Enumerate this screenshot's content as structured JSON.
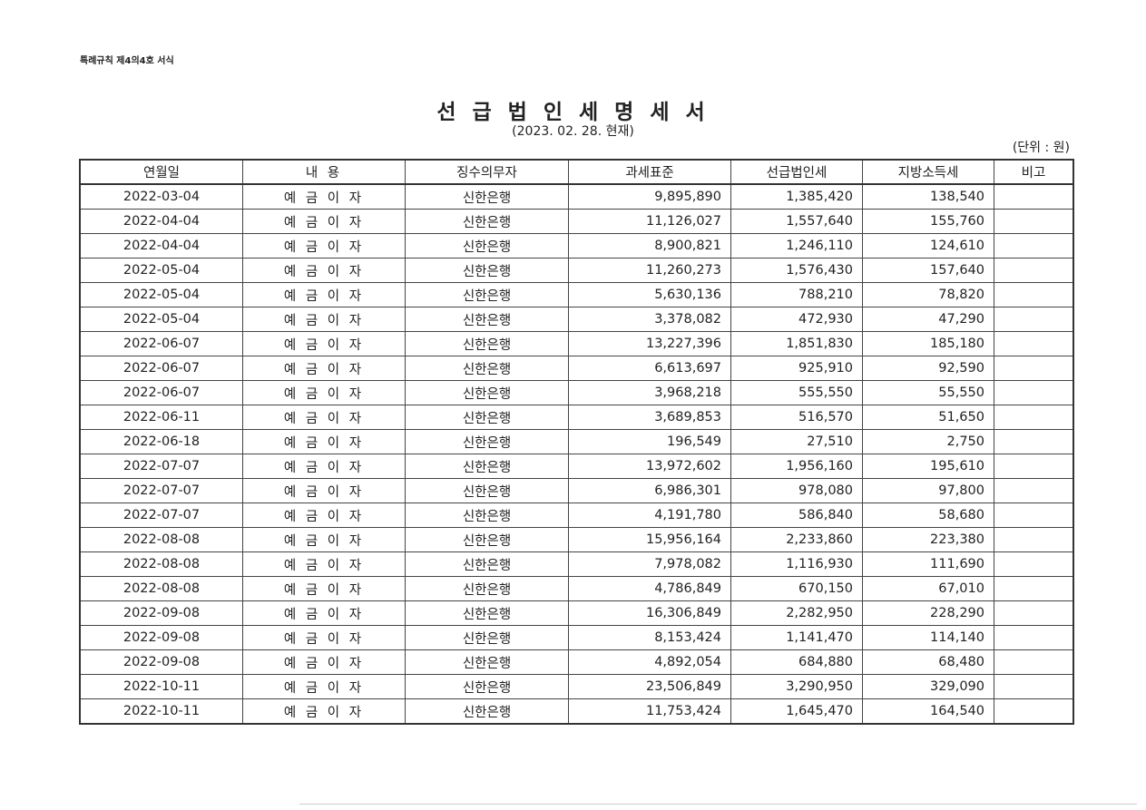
{
  "document": {
    "form_label": "특례규칙 제4의4호 서식",
    "title": "선 급 법 인 세 명 세 서",
    "subtitle": "(2023.  02.  28. 현재)",
    "unit": "(단위 : 원)"
  },
  "table": {
    "headers": [
      "연월일",
      "내        용",
      "징수의무자",
      "과세표준",
      "선급법인세",
      "지방소득세",
      "비고"
    ],
    "rows": [
      [
        "2022-03-04",
        "예 금 이 자",
        "신한은행",
        "9,895,890",
        "1,385,420",
        "138,540",
        ""
      ],
      [
        "2022-04-04",
        "예 금 이 자",
        "신한은행",
        "11,126,027",
        "1,557,640",
        "155,760",
        ""
      ],
      [
        "2022-04-04",
        "예 금 이 자",
        "신한은행",
        "8,900,821",
        "1,246,110",
        "124,610",
        ""
      ],
      [
        "2022-05-04",
        "예 금 이 자",
        "신한은행",
        "11,260,273",
        "1,576,430",
        "157,640",
        ""
      ],
      [
        "2022-05-04",
        "예 금 이 자",
        "신한은행",
        "5,630,136",
        "788,210",
        "78,820",
        ""
      ],
      [
        "2022-05-04",
        "예 금 이 자",
        "신한은행",
        "3,378,082",
        "472,930",
        "47,290",
        ""
      ],
      [
        "2022-06-07",
        "예 금 이 자",
        "신한은행",
        "13,227,396",
        "1,851,830",
        "185,180",
        ""
      ],
      [
        "2022-06-07",
        "예 금 이 자",
        "신한은행",
        "6,613,697",
        "925,910",
        "92,590",
        ""
      ],
      [
        "2022-06-07",
        "예 금 이 자",
        "신한은행",
        "3,968,218",
        "555,550",
        "55,550",
        ""
      ],
      [
        "2022-06-11",
        "예 금 이 자",
        "신한은행",
        "3,689,853",
        "516,570",
        "51,650",
        ""
      ],
      [
        "2022-06-18",
        "예 금 이 자",
        "신한은행",
        "196,549",
        "27,510",
        "2,750",
        ""
      ],
      [
        "2022-07-07",
        "예 금 이 자",
        "신한은행",
        "13,972,602",
        "1,956,160",
        "195,610",
        ""
      ],
      [
        "2022-07-07",
        "예 금 이 자",
        "신한은행",
        "6,986,301",
        "978,080",
        "97,800",
        ""
      ],
      [
        "2022-07-07",
        "예 금 이 자",
        "신한은행",
        "4,191,780",
        "586,840",
        "58,680",
        ""
      ],
      [
        "2022-08-08",
        "예 금 이 자",
        "신한은행",
        "15,956,164",
        "2,233,860",
        "223,380",
        ""
      ],
      [
        "2022-08-08",
        "예 금 이 자",
        "신한은행",
        "7,978,082",
        "1,116,930",
        "111,690",
        ""
      ],
      [
        "2022-08-08",
        "예 금 이 자",
        "신한은행",
        "4,786,849",
        "670,150",
        "67,010",
        ""
      ],
      [
        "2022-09-08",
        "예 금 이 자",
        "신한은행",
        "16,306,849",
        "2,282,950",
        "228,290",
        ""
      ],
      [
        "2022-09-08",
        "예 금 이 자",
        "신한은행",
        "8,153,424",
        "1,141,470",
        "114,140",
        ""
      ],
      [
        "2022-09-08",
        "예 금 이 자",
        "신한은행",
        "4,892,054",
        "684,880",
        "68,480",
        ""
      ],
      [
        "2022-10-11",
        "예 금 이 자",
        "신한은행",
        "23,506,849",
        "3,290,950",
        "329,090",
        ""
      ],
      [
        "2022-10-11",
        "예 금 이 자",
        "신한은행",
        "11,753,424",
        "1,645,470",
        "164,540",
        ""
      ]
    ]
  }
}
